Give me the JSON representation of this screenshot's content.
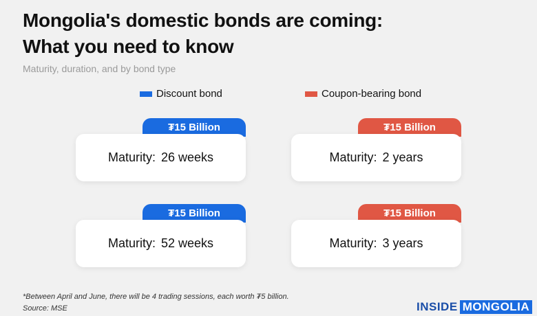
{
  "header": {
    "title_lines": [
      "Mongolia's domestic bonds are coming:",
      "What you need to know"
    ],
    "subtitle": "Maturity, duration, and by bond type"
  },
  "legend": [
    {
      "label": "Discount bond",
      "color": "#1a6be0"
    },
    {
      "label": "Coupon-bearing bond",
      "color": "#e05744"
    }
  ],
  "cards": [
    {
      "type": 0,
      "tag": "₮15 Billion",
      "label": "Maturity:",
      "value": "26 weeks"
    },
    {
      "type": 1,
      "tag": "₮15 Billion",
      "label": "Maturity:",
      "value": "2 years"
    },
    {
      "type": 0,
      "tag": "₮15 Billion",
      "label": "Maturity:",
      "value": "52 weeks"
    },
    {
      "type": 1,
      "tag": "₮15 Billion",
      "label": "Maturity:",
      "value": "3 years"
    }
  ],
  "footer": {
    "note": "*Between April and June, there will be 4 trading sessions, each worth ₮5 billion.",
    "source": "Source: MSE",
    "brand": [
      "INSIDE",
      "MONGOLIA"
    ]
  }
}
